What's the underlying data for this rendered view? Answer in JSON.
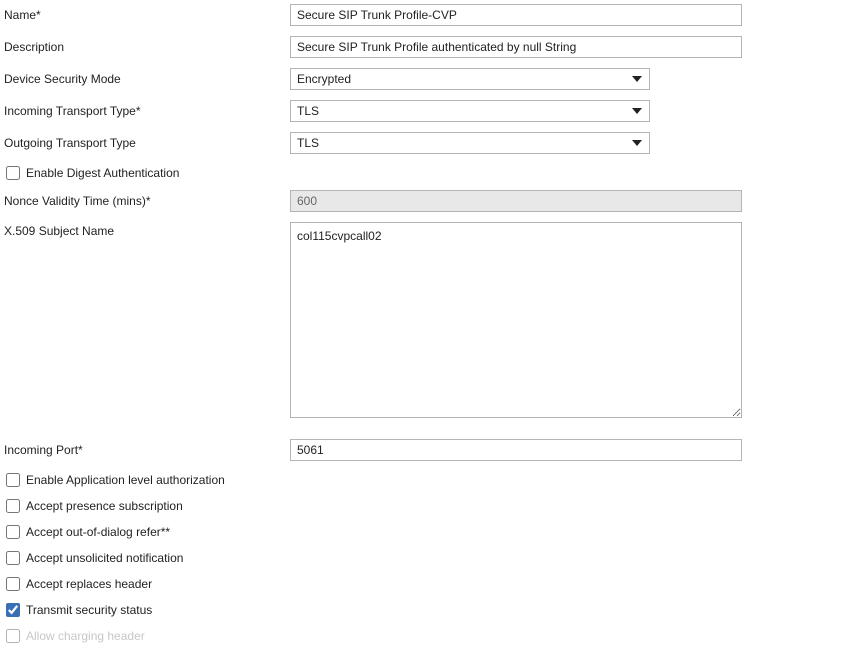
{
  "labels": {
    "name": "Name",
    "description": "Description",
    "device_security_mode": "Device Security Mode",
    "incoming_transport_type": "Incoming Transport Type",
    "outgoing_transport_type": "Outgoing Transport Type",
    "enable_digest_auth": "Enable Digest Authentication",
    "nonce_validity": "Nonce Validity Time (mins)",
    "x509_subject": "X.509 Subject Name",
    "incoming_port": "Incoming Port",
    "enable_app_level_auth": "Enable Application level authorization",
    "accept_presence": "Accept presence subscription",
    "accept_ood_refer": "Accept out-of-dialog refer",
    "accept_unsolicited": "Accept unsolicited notification",
    "accept_replaces": "Accept replaces header",
    "transmit_security": "Transmit security status",
    "allow_charging": "Allow charging header"
  },
  "required_marker": "*",
  "double_marker": "**",
  "values": {
    "name": "Secure SIP Trunk Profile-CVP",
    "description": "Secure SIP Trunk Profile authenticated by null String",
    "device_security_mode": "Encrypted",
    "incoming_transport_type": "TLS",
    "outgoing_transport_type": "TLS",
    "nonce_validity": "600",
    "x509_subject": "col115cvpcall02",
    "incoming_port": "5061"
  }
}
